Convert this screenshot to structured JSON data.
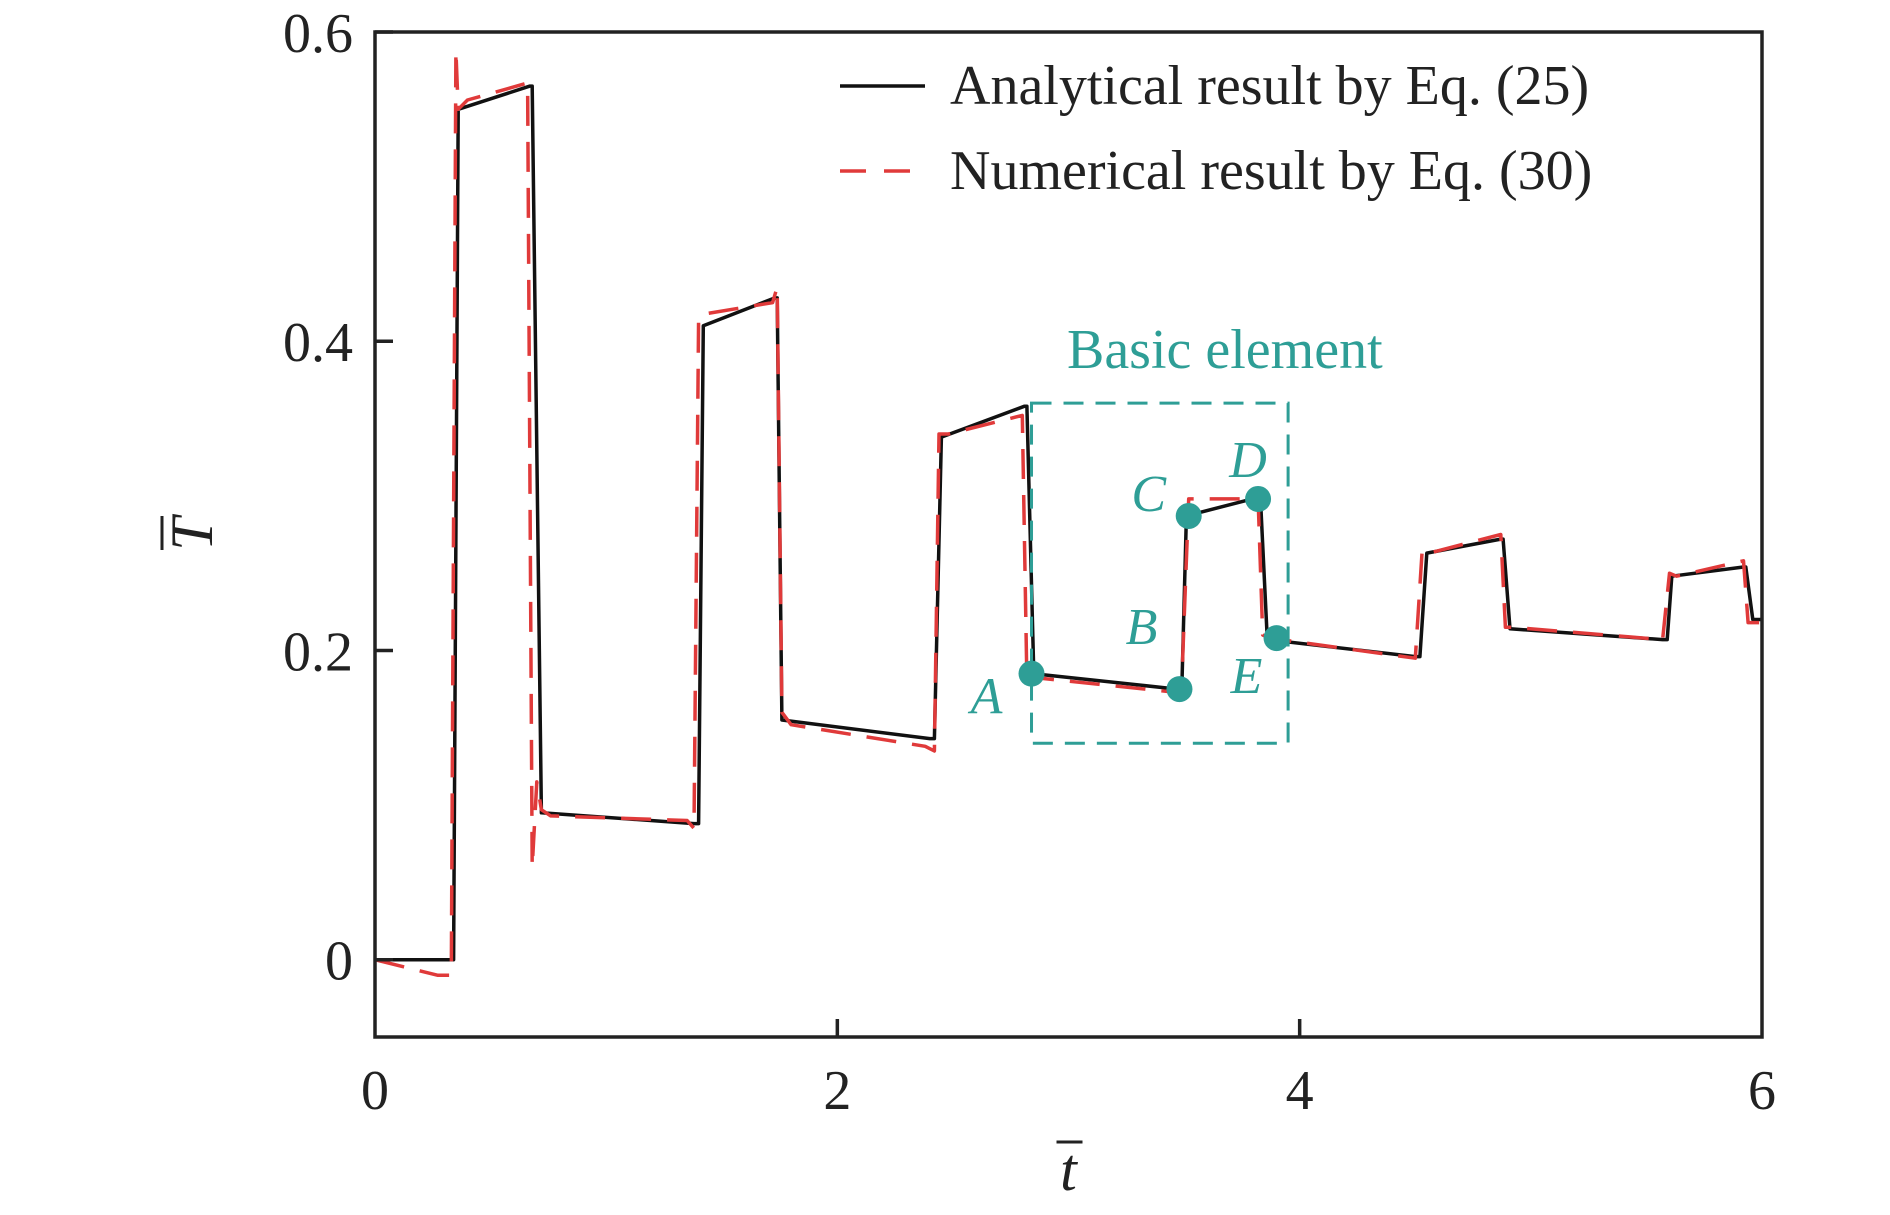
{
  "chart_data": {
    "type": "line",
    "title": "",
    "xlabel": "t",
    "ylabel": "T",
    "xlim": [
      0,
      6
    ],
    "ylim": [
      -0.05,
      0.6
    ],
    "xticks": [
      0,
      2,
      4,
      6
    ],
    "yticks": [
      0,
      0.2,
      0.4,
      0.6
    ],
    "xtick_labels": [
      "0",
      "2",
      "4",
      "6"
    ],
    "ytick_labels": [
      "0",
      "0.2",
      "0.4",
      "0.6"
    ],
    "grid": false,
    "legend_position": "top-right",
    "colors": {
      "analytical": "#111111",
      "numerical": "#e03a3a",
      "annotation": "#2e9e96"
    },
    "series": [
      {
        "name": "Analytical result by Eq. (25)",
        "style": "solid",
        "x": [
          0,
          0.3,
          0.34,
          0.36,
          0.67,
          0.68,
          0.72,
          1.38,
          1.4,
          1.42,
          1.73,
          1.74,
          1.76,
          2.4,
          2.42,
          2.45,
          2.81,
          2.82,
          2.85,
          3.47,
          3.49,
          3.51,
          3.82,
          3.83,
          3.86,
          4.5,
          4.52,
          4.55,
          4.87,
          4.88,
          4.91,
          5.57,
          5.59,
          5.61,
          5.92,
          5.93,
          5.96,
          6.0
        ],
        "y": [
          0,
          0,
          0,
          0.55,
          0.565,
          0.565,
          0.095,
          0.088,
          0.088,
          0.41,
          0.428,
          0.428,
          0.155,
          0.143,
          0.143,
          0.338,
          0.358,
          0.358,
          0.185,
          0.175,
          0.175,
          0.287,
          0.299,
          0.299,
          0.207,
          0.196,
          0.196,
          0.263,
          0.272,
          0.272,
          0.214,
          0.207,
          0.207,
          0.248,
          0.254,
          0.254,
          0.22,
          0.22
        ]
      },
      {
        "name": "Numerical result by Eq. (30)",
        "style": "dashed",
        "x": [
          0,
          0.27,
          0.33,
          0.35,
          0.36,
          0.4,
          0.66,
          0.68,
          0.7,
          0.72,
          0.76,
          1.35,
          1.38,
          1.4,
          1.44,
          1.72,
          1.74,
          1.76,
          1.8,
          2.38,
          2.42,
          2.44,
          2.48,
          2.8,
          2.82,
          2.84,
          2.88,
          3.46,
          3.49,
          3.52,
          3.82,
          3.84,
          3.87,
          4.5,
          4.53,
          4.56,
          4.87,
          4.89,
          4.92,
          5.57,
          5.6,
          5.63,
          5.92,
          5.94,
          6.0
        ],
        "y": [
          0,
          -0.01,
          -0.01,
          0.588,
          0.55,
          0.556,
          0.567,
          0.06,
          0.115,
          0.097,
          0.093,
          0.09,
          0.085,
          0.415,
          0.418,
          0.425,
          0.435,
          0.16,
          0.152,
          0.138,
          0.135,
          0.34,
          0.34,
          0.352,
          0.18,
          0.18,
          0.182,
          0.173,
          0.18,
          0.298,
          0.298,
          0.21,
          0.208,
          0.195,
          0.265,
          0.263,
          0.275,
          0.215,
          0.215,
          0.207,
          0.25,
          0.248,
          0.258,
          0.218,
          0.218
        ]
      }
    ],
    "annotation": {
      "label": "Basic element",
      "box": {
        "x0": 2.84,
        "x1": 3.95,
        "y0": 0.14,
        "y1": 0.36
      },
      "points": [
        {
          "label": "A",
          "x": 2.84,
          "y": 0.185
        },
        {
          "label": "B",
          "x": 3.48,
          "y": 0.175
        },
        {
          "label": "C",
          "x": 3.52,
          "y": 0.287
        },
        {
          "label": "D",
          "x": 3.82,
          "y": 0.298
        },
        {
          "label": "E",
          "x": 3.9,
          "y": 0.208
        }
      ]
    }
  }
}
